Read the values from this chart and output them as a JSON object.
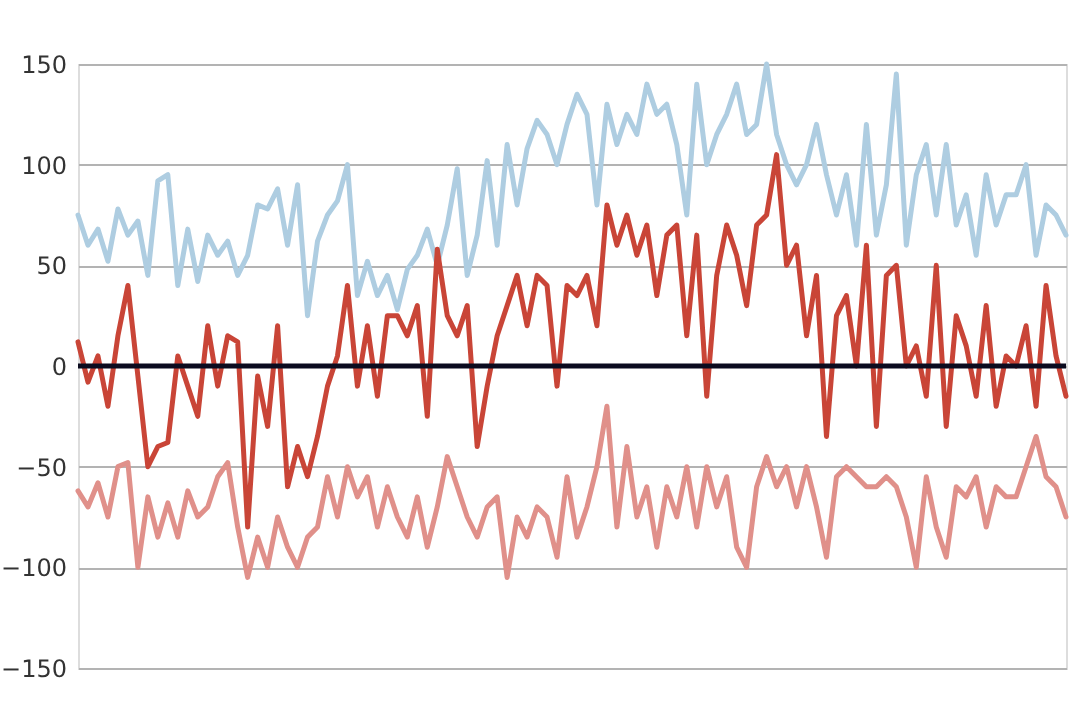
{
  "chart_data": {
    "type": "line",
    "categories": [
      null,
      null,
      null,
      null,
      null,
      null,
      null,
      null,
      null,
      null,
      null,
      null,
      null,
      null,
      null,
      null,
      null,
      null,
      null,
      null,
      null,
      null,
      null,
      null,
      null,
      null,
      null,
      null,
      null,
      null,
      null,
      null,
      null,
      null,
      null,
      null,
      null,
      null,
      null,
      null,
      null,
      null,
      null,
      null,
      null,
      null,
      null,
      null,
      null,
      null,
      null,
      null,
      null,
      null,
      null,
      null,
      null,
      null,
      null,
      null,
      null,
      null,
      null,
      null,
      null,
      null,
      null,
      null,
      null,
      null,
      null,
      null,
      null,
      null,
      null,
      null,
      null,
      null,
      null,
      null,
      null,
      null,
      null,
      null,
      null,
      null,
      null,
      null,
      null,
      null,
      null,
      null,
      null,
      null,
      null,
      null,
      null,
      null,
      null,
      null
    ],
    "series": [
      {
        "color": "#aecde1",
        "values": [
          75,
          60,
          68,
          52,
          78,
          65,
          72,
          45,
          92,
          95,
          40,
          68,
          42,
          65,
          55,
          62,
          45,
          55,
          80,
          78,
          88,
          60,
          90,
          25,
          62,
          75,
          82,
          100,
          35,
          52,
          35,
          45,
          28,
          48,
          55,
          68,
          50,
          70,
          98,
          45,
          65,
          102,
          60,
          110,
          80,
          108,
          122,
          115,
          100,
          120,
          135,
          125,
          80,
          130,
          110,
          125,
          115,
          140,
          125,
          130,
          110,
          75,
          140,
          100,
          115,
          125,
          140,
          115,
          120,
          150,
          115,
          100,
          90,
          100,
          120,
          95,
          75,
          95,
          60,
          120,
          65,
          90,
          145,
          60,
          95,
          110,
          75,
          110,
          70,
          85,
          55,
          95,
          70,
          85,
          85,
          100,
          55,
          80,
          75,
          65
        ]
      },
      {
        "color": "#c94537",
        "values": [
          12,
          -8,
          5,
          -20,
          15,
          40,
          -5,
          -50,
          -40,
          -38,
          5,
          -10,
          -25,
          20,
          -10,
          15,
          12,
          -80,
          -5,
          -30,
          20,
          -60,
          -40,
          -55,
          -35,
          -10,
          5,
          40,
          -10,
          20,
          -15,
          25,
          25,
          15,
          30,
          -25,
          58,
          25,
          15,
          30,
          -40,
          -10,
          15,
          30,
          45,
          20,
          45,
          40,
          -10,
          40,
          35,
          45,
          20,
          80,
          60,
          75,
          55,
          70,
          35,
          65,
          70,
          15,
          65,
          -15,
          45,
          70,
          55,
          30,
          70,
          75,
          105,
          50,
          60,
          15,
          45,
          -35,
          25,
          35,
          0,
          60,
          -30,
          45,
          50,
          0,
          10,
          -15,
          50,
          -30,
          25,
          10,
          -15,
          30,
          -20,
          5,
          0,
          20,
          -20,
          40,
          5,
          -15
        ]
      },
      {
        "color": "#e0908a",
        "values": [
          -62,
          -70,
          -58,
          -75,
          -50,
          -48,
          -100,
          -65,
          -85,
          -68,
          -85,
          -62,
          -75,
          -70,
          -55,
          -48,
          -80,
          -105,
          -85,
          -100,
          -75,
          -90,
          -100,
          -85,
          -80,
          -55,
          -75,
          -50,
          -65,
          -55,
          -80,
          -60,
          -75,
          -85,
          -65,
          -90,
          -70,
          -45,
          -60,
          -75,
          -85,
          -70,
          -65,
          -105,
          -75,
          -85,
          -70,
          -75,
          -95,
          -55,
          -85,
          -70,
          -50,
          -20,
          -80,
          -40,
          -75,
          -60,
          -90,
          -60,
          -75,
          -50,
          -80,
          -50,
          -70,
          -55,
          -90,
          -100,
          -60,
          -45,
          -60,
          -50,
          -70,
          -50,
          -70,
          -95,
          -55,
          -50,
          -55,
          -60,
          -60,
          -55,
          -60,
          -75,
          -100,
          -55,
          -80,
          -95,
          -60,
          -65,
          -55,
          -80,
          -60,
          -65,
          -65,
          -50,
          -35,
          -55,
          -60,
          -75
        ]
      }
    ],
    "ylim": [
      -150,
      150
    ],
    "yticks": [
      -150,
      -100,
      -50,
      0,
      50,
      100,
      150
    ],
    "ref_lines": [
      {
        "axis": "y",
        "value": 0,
        "color": "#0b0b1f"
      }
    ],
    "grid": "y",
    "tick_labels": "y",
    "line_style": "solid",
    "marker": "none"
  }
}
